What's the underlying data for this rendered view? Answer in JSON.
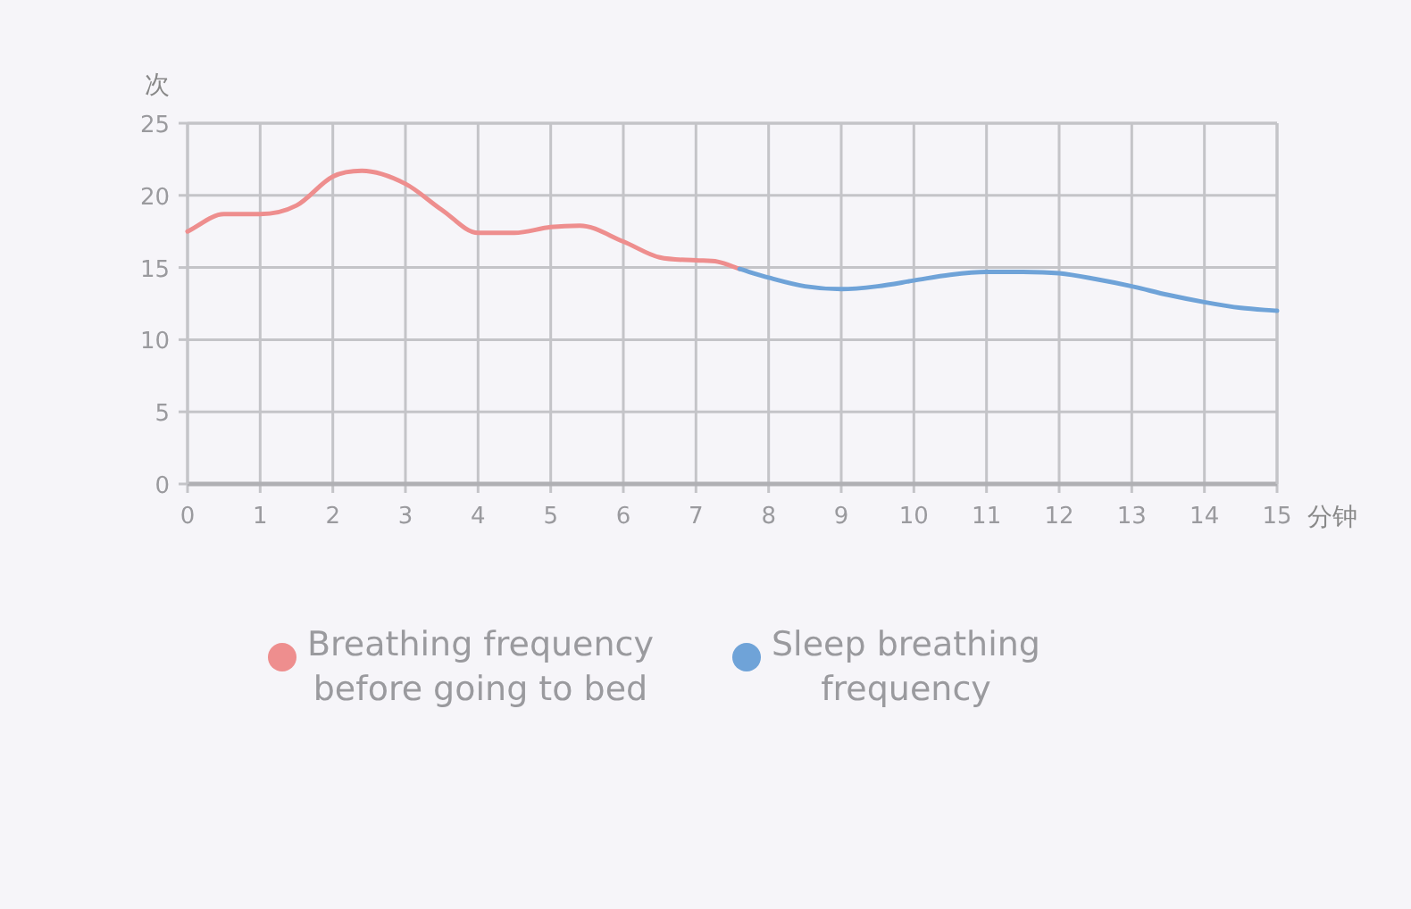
{
  "chart_data": {
    "type": "line",
    "xlabel": "分钟",
    "ylabel": "次",
    "xlim": [
      0,
      15
    ],
    "xticks": [
      0,
      1,
      2,
      3,
      4,
      5,
      6,
      7,
      8,
      9,
      10,
      11,
      12,
      13,
      14,
      15
    ],
    "ylim": [
      0,
      25
    ],
    "yticks": [
      0,
      5,
      10,
      15,
      20,
      25
    ],
    "grid": true,
    "legend": "bottom",
    "marker": "none",
    "line_style": "solid",
    "series": [
      {
        "name": "Breathing frequency before going to bed",
        "color": "#ee8e8e",
        "x": [
          0,
          0.5,
          1,
          1.5,
          2,
          2.4,
          3,
          3.5,
          4,
          4.5,
          5,
          5.4,
          6,
          6.5,
          7,
          7.3,
          7.6
        ],
        "values": [
          17.5,
          18.7,
          18.7,
          19.3,
          21.3,
          21.7,
          20.8,
          19,
          17.4,
          17.4,
          17.8,
          17.9,
          16.8,
          15.7,
          15.5,
          15.4,
          14.9
        ]
      },
      {
        "name": "Sleep breathing frequency",
        "color": "#6fa3d8",
        "x": [
          7.6,
          8,
          8.5,
          9,
          9.5,
          10,
          10.5,
          11,
          11.5,
          12,
          12.5,
          13,
          13.5,
          14,
          14.5,
          15
        ],
        "values": [
          14.9,
          14.3,
          13.7,
          13.5,
          13.7,
          14.1,
          14.5,
          14.7,
          14.7,
          14.6,
          14.2,
          13.7,
          13.1,
          12.6,
          12.2,
          12.0
        ]
      }
    ]
  }
}
